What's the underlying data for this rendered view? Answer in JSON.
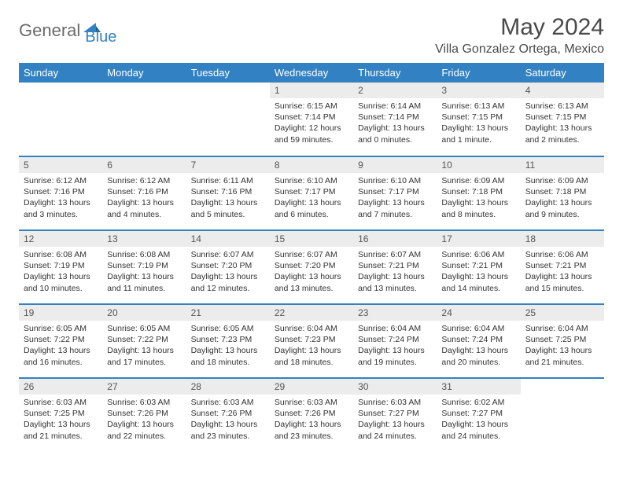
{
  "logo": {
    "text1": "General",
    "text2": "Blue"
  },
  "title": "May 2024",
  "location": "Villa Gonzalez Ortega, Mexico",
  "colors": {
    "header_bg": "#3282c3",
    "header_fg": "#ffffff",
    "daynum_bg": "#ececec",
    "text": "#333333",
    "logo_gray": "#6b6b6b",
    "logo_blue": "#3282c3"
  },
  "weekdays": [
    "Sunday",
    "Monday",
    "Tuesday",
    "Wednesday",
    "Thursday",
    "Friday",
    "Saturday"
  ],
  "days": [
    {
      "n": "",
      "sr": "",
      "ss": "",
      "dl": ""
    },
    {
      "n": "",
      "sr": "",
      "ss": "",
      "dl": ""
    },
    {
      "n": "",
      "sr": "",
      "ss": "",
      "dl": ""
    },
    {
      "n": "1",
      "sr": "6:15 AM",
      "ss": "7:14 PM",
      "dl": "12 hours and 59 minutes."
    },
    {
      "n": "2",
      "sr": "6:14 AM",
      "ss": "7:14 PM",
      "dl": "13 hours and 0 minutes."
    },
    {
      "n": "3",
      "sr": "6:13 AM",
      "ss": "7:15 PM",
      "dl": "13 hours and 1 minute."
    },
    {
      "n": "4",
      "sr": "6:13 AM",
      "ss": "7:15 PM",
      "dl": "13 hours and 2 minutes."
    },
    {
      "n": "5",
      "sr": "6:12 AM",
      "ss": "7:16 PM",
      "dl": "13 hours and 3 minutes."
    },
    {
      "n": "6",
      "sr": "6:12 AM",
      "ss": "7:16 PM",
      "dl": "13 hours and 4 minutes."
    },
    {
      "n": "7",
      "sr": "6:11 AM",
      "ss": "7:16 PM",
      "dl": "13 hours and 5 minutes."
    },
    {
      "n": "8",
      "sr": "6:10 AM",
      "ss": "7:17 PM",
      "dl": "13 hours and 6 minutes."
    },
    {
      "n": "9",
      "sr": "6:10 AM",
      "ss": "7:17 PM",
      "dl": "13 hours and 7 minutes."
    },
    {
      "n": "10",
      "sr": "6:09 AM",
      "ss": "7:18 PM",
      "dl": "13 hours and 8 minutes."
    },
    {
      "n": "11",
      "sr": "6:09 AM",
      "ss": "7:18 PM",
      "dl": "13 hours and 9 minutes."
    },
    {
      "n": "12",
      "sr": "6:08 AM",
      "ss": "7:19 PM",
      "dl": "13 hours and 10 minutes."
    },
    {
      "n": "13",
      "sr": "6:08 AM",
      "ss": "7:19 PM",
      "dl": "13 hours and 11 minutes."
    },
    {
      "n": "14",
      "sr": "6:07 AM",
      "ss": "7:20 PM",
      "dl": "13 hours and 12 minutes."
    },
    {
      "n": "15",
      "sr": "6:07 AM",
      "ss": "7:20 PM",
      "dl": "13 hours and 13 minutes."
    },
    {
      "n": "16",
      "sr": "6:07 AM",
      "ss": "7:21 PM",
      "dl": "13 hours and 13 minutes."
    },
    {
      "n": "17",
      "sr": "6:06 AM",
      "ss": "7:21 PM",
      "dl": "13 hours and 14 minutes."
    },
    {
      "n": "18",
      "sr": "6:06 AM",
      "ss": "7:21 PM",
      "dl": "13 hours and 15 minutes."
    },
    {
      "n": "19",
      "sr": "6:05 AM",
      "ss": "7:22 PM",
      "dl": "13 hours and 16 minutes."
    },
    {
      "n": "20",
      "sr": "6:05 AM",
      "ss": "7:22 PM",
      "dl": "13 hours and 17 minutes."
    },
    {
      "n": "21",
      "sr": "6:05 AM",
      "ss": "7:23 PM",
      "dl": "13 hours and 18 minutes."
    },
    {
      "n": "22",
      "sr": "6:04 AM",
      "ss": "7:23 PM",
      "dl": "13 hours and 18 minutes."
    },
    {
      "n": "23",
      "sr": "6:04 AM",
      "ss": "7:24 PM",
      "dl": "13 hours and 19 minutes."
    },
    {
      "n": "24",
      "sr": "6:04 AM",
      "ss": "7:24 PM",
      "dl": "13 hours and 20 minutes."
    },
    {
      "n": "25",
      "sr": "6:04 AM",
      "ss": "7:25 PM",
      "dl": "13 hours and 21 minutes."
    },
    {
      "n": "26",
      "sr": "6:03 AM",
      "ss": "7:25 PM",
      "dl": "13 hours and 21 minutes."
    },
    {
      "n": "27",
      "sr": "6:03 AM",
      "ss": "7:26 PM",
      "dl": "13 hours and 22 minutes."
    },
    {
      "n": "28",
      "sr": "6:03 AM",
      "ss": "7:26 PM",
      "dl": "13 hours and 23 minutes."
    },
    {
      "n": "29",
      "sr": "6:03 AM",
      "ss": "7:26 PM",
      "dl": "13 hours and 23 minutes."
    },
    {
      "n": "30",
      "sr": "6:03 AM",
      "ss": "7:27 PM",
      "dl": "13 hours and 24 minutes."
    },
    {
      "n": "31",
      "sr": "6:02 AM",
      "ss": "7:27 PM",
      "dl": "13 hours and 24 minutes."
    },
    {
      "n": "",
      "sr": "",
      "ss": "",
      "dl": ""
    }
  ],
  "labels": {
    "sunrise": "Sunrise:",
    "sunset": "Sunset:",
    "daylight": "Daylight:"
  }
}
